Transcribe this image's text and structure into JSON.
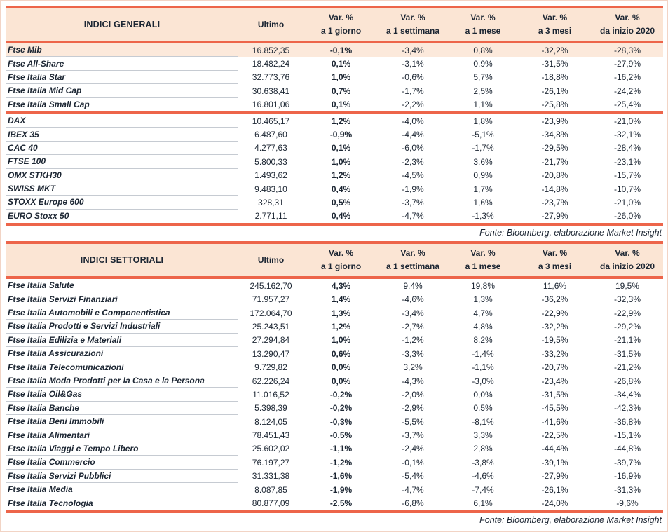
{
  "colors": {
    "accent_red": "#ed654a",
    "header_bg": "#fbe5d4",
    "highlight_row_bg": "#fce9db",
    "text": "#1c2633",
    "row_separator": "#c6cbd2"
  },
  "tables": [
    {
      "title": "INDICI GENERALI",
      "col_headers": [
        {
          "key": "ultimo",
          "line1": "Ultimo",
          "line2": ""
        },
        {
          "key": "var-1-giorno",
          "line1": "Var. %",
          "line2": "a 1 giorno"
        },
        {
          "key": "var-1-settimana",
          "line1": "Var. %",
          "line2": "a 1 settimana"
        },
        {
          "key": "var-1-mese",
          "line1": "Var. %",
          "line2": "a 1 mese"
        },
        {
          "key": "var-3-mesi",
          "line1": "Var. %",
          "line2": "a 3 mesi"
        },
        {
          "key": "var-da-inizio-2020",
          "line1": "Var. %",
          "line2": "da inizio 2020"
        }
      ],
      "groups": [
        {
          "rows": [
            {
              "name": "Ftse Mib",
              "ultimo": "16.852,35",
              "d1": "-0,1%",
              "w1": "-3,4%",
              "m1": "0,8%",
              "m3": "-32,2%",
              "y": "-28,3%",
              "highlight": true
            },
            {
              "name": "Ftse All-Share",
              "ultimo": "18.482,24",
              "d1": "0,1%",
              "w1": "-3,1%",
              "m1": "0,9%",
              "m3": "-31,5%",
              "y": "-27,9%"
            },
            {
              "name": "Ftse Italia Star",
              "ultimo": "32.773,76",
              "d1": "1,0%",
              "w1": "-0,6%",
              "m1": "5,7%",
              "m3": "-18,8%",
              "y": "-16,2%"
            },
            {
              "name": "Ftse Italia Mid Cap",
              "ultimo": "30.638,41",
              "d1": "0,7%",
              "w1": "-1,7%",
              "m1": "2,5%",
              "m3": "-26,1%",
              "y": "-24,2%"
            },
            {
              "name": "Ftse Italia Small Cap",
              "ultimo": "16.801,06",
              "d1": "0,1%",
              "w1": "-2,2%",
              "m1": "1,1%",
              "m3": "-25,8%",
              "y": "-25,4%"
            }
          ]
        },
        {
          "rows": [
            {
              "name": "DAX",
              "ultimo": "10.465,17",
              "d1": "1,2%",
              "w1": "-4,0%",
              "m1": "1,8%",
              "m3": "-23,9%",
              "y": "-21,0%"
            },
            {
              "name": "IBEX 35",
              "ultimo": "6.487,60",
              "d1": "-0,9%",
              "w1": "-4,4%",
              "m1": "-5,1%",
              "m3": "-34,8%",
              "y": "-32,1%"
            },
            {
              "name": "CAC 40",
              "ultimo": "4.277,63",
              "d1": "0,1%",
              "w1": "-6,0%",
              "m1": "-1,7%",
              "m3": "-29,5%",
              "y": "-28,4%"
            },
            {
              "name": "FTSE 100",
              "ultimo": "5.800,33",
              "d1": "1,0%",
              "w1": "-2,3%",
              "m1": "3,6%",
              "m3": "-21,7%",
              "y": "-23,1%"
            },
            {
              "name": "OMX STKH30",
              "ultimo": "1.493,62",
              "d1": "1,2%",
              "w1": "-4,5%",
              "m1": "0,9%",
              "m3": "-20,8%",
              "y": "-15,7%"
            },
            {
              "name": "SWISS MKT",
              "ultimo": "9.483,10",
              "d1": "0,4%",
              "w1": "-1,9%",
              "m1": "1,7%",
              "m3": "-14,8%",
              "y": "-10,7%"
            },
            {
              "name": "STOXX Europe 600",
              "ultimo": "328,31",
              "d1": "0,5%",
              "w1": "-3,7%",
              "m1": "1,6%",
              "m3": "-23,7%",
              "y": "-21,0%"
            },
            {
              "name": "EURO Stoxx 50",
              "ultimo": "2.771,11",
              "d1": "0,4%",
              "w1": "-4,7%",
              "m1": "-1,3%",
              "m3": "-27,9%",
              "y": "-26,0%"
            }
          ]
        }
      ],
      "source": "Fonte: Bloomberg, elaborazione Market Insight"
    },
    {
      "title": "INDICI SETTORIALI",
      "col_headers": [
        {
          "key": "ultimo",
          "line1": "Ultimo",
          "line2": ""
        },
        {
          "key": "var-1-giorno",
          "line1": "Var. %",
          "line2": "a 1 giorno"
        },
        {
          "key": "var-1-settimana",
          "line1": "Var. %",
          "line2": "a 1 settimana"
        },
        {
          "key": "var-1-mese",
          "line1": "Var. %",
          "line2": "a 1 mese"
        },
        {
          "key": "var-3-mesi",
          "line1": "Var. %",
          "line2": "a 3 mesi"
        },
        {
          "key": "var-da-inizio-2020",
          "line1": "Var. %",
          "line2": "da inizio 2020"
        }
      ],
      "groups": [
        {
          "rows": [
            {
              "name": "Ftse Italia Salute",
              "ultimo": "245.162,70",
              "d1": "4,3%",
              "w1": "9,4%",
              "m1": "19,8%",
              "m3": "11,6%",
              "y": "19,5%"
            },
            {
              "name": "Ftse Italia Servizi Finanziari",
              "ultimo": "71.957,27",
              "d1": "1,4%",
              "w1": "-4,6%",
              "m1": "1,3%",
              "m3": "-36,2%",
              "y": "-32,3%"
            },
            {
              "name": "Ftse Italia Automobili e Componentistica",
              "ultimo": "172.064,70",
              "d1": "1,3%",
              "w1": "-3,4%",
              "m1": "4,7%",
              "m3": "-22,9%",
              "y": "-22,9%"
            },
            {
              "name": "Ftse Italia Prodotti e Servizi Industriali",
              "ultimo": "25.243,51",
              "d1": "1,2%",
              "w1": "-2,7%",
              "m1": "4,8%",
              "m3": "-32,2%",
              "y": "-29,2%"
            },
            {
              "name": "Ftse Italia Edilizia e Materiali",
              "ultimo": "27.294,84",
              "d1": "1,0%",
              "w1": "-1,2%",
              "m1": "8,2%",
              "m3": "-19,5%",
              "y": "-21,1%"
            },
            {
              "name": "Ftse Italia Assicurazioni",
              "ultimo": "13.290,47",
              "d1": "0,6%",
              "w1": "-3,3%",
              "m1": "-1,4%",
              "m3": "-33,2%",
              "y": "-31,5%"
            },
            {
              "name": "Ftse Italia Telecomunicazioni",
              "ultimo": "9.729,82",
              "d1": "0,0%",
              "w1": "3,2%",
              "m1": "-1,1%",
              "m3": "-20,7%",
              "y": "-21,2%"
            },
            {
              "name": "Ftse Italia Moda Prodotti per la Casa e la Persona",
              "ultimo": "62.226,24",
              "d1": "0,0%",
              "w1": "-4,3%",
              "m1": "-3,0%",
              "m3": "-23,4%",
              "y": "-26,8%"
            },
            {
              "name": "Ftse Italia Oil&Gas",
              "ultimo": "11.016,52",
              "d1": "-0,2%",
              "w1": "-2,0%",
              "m1": "0,0%",
              "m3": "-31,5%",
              "y": "-34,4%"
            },
            {
              "name": "Ftse Italia Banche",
              "ultimo": "5.398,39",
              "d1": "-0,2%",
              "w1": "-2,9%",
              "m1": "0,5%",
              "m3": "-45,5%",
              "y": "-42,3%"
            },
            {
              "name": "Ftse Italia Beni Immobili",
              "ultimo": "8.124,05",
              "d1": "-0,3%",
              "w1": "-5,5%",
              "m1": "-8,1%",
              "m3": "-41,6%",
              "y": "-36,8%"
            },
            {
              "name": "Ftse Italia Alimentari",
              "ultimo": "78.451,43",
              "d1": "-0,5%",
              "w1": "-3,7%",
              "m1": "3,3%",
              "m3": "-22,5%",
              "y": "-15,1%"
            },
            {
              "name": "Ftse Italia Viaggi e Tempo Libero",
              "ultimo": "25.602,02",
              "d1": "-1,1%",
              "w1": "-2,4%",
              "m1": "2,8%",
              "m3": "-44,4%",
              "y": "-44,8%"
            },
            {
              "name": "Ftse Italia Commercio",
              "ultimo": "76.197,27",
              "d1": "-1,2%",
              "w1": "-0,1%",
              "m1": "-3,8%",
              "m3": "-39,1%",
              "y": "-39,7%"
            },
            {
              "name": "Ftse Italia Servizi Pubblici",
              "ultimo": "31.331,38",
              "d1": "-1,6%",
              "w1": "-5,4%",
              "m1": "-4,6%",
              "m3": "-27,9%",
              "y": "-16,9%"
            },
            {
              "name": "Ftse Italia Media",
              "ultimo": "8.087,85",
              "d1": "-1,9%",
              "w1": "-4,7%",
              "m1": "-7,4%",
              "m3": "-26,1%",
              "y": "-31,3%"
            },
            {
              "name": "Ftse Italia Tecnologia",
              "ultimo": "80.877,09",
              "d1": "-2,5%",
              "w1": "-6,8%",
              "m1": "6,1%",
              "m3": "-24,0%",
              "y": "-9,6%"
            }
          ]
        }
      ],
      "source": "Fonte: Bloomberg, elaborazione Market Insight"
    }
  ]
}
